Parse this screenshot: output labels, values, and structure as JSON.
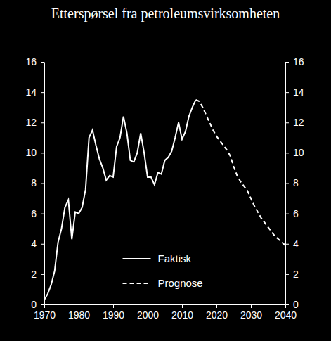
{
  "chart_data": {
    "type": "line",
    "title": "Etterspørsel fra petroleumsvirksomheten",
    "x": [
      1970,
      1971,
      1972,
      1973,
      1974,
      1975,
      1976,
      1977,
      1978,
      1979,
      1980,
      1981,
      1982,
      1983,
      1984,
      1985,
      1986,
      1987,
      1988,
      1989,
      1990,
      1991,
      1992,
      1993,
      1994,
      1995,
      1996,
      1997,
      1998,
      1999,
      2000,
      2001,
      2002,
      2003,
      2004,
      2005,
      2006,
      2007,
      2008,
      2009,
      2010,
      2011,
      2012,
      2013,
      2014,
      2015,
      2016,
      2017,
      2018,
      2019,
      2020,
      2021,
      2022,
      2023,
      2024,
      2025,
      2026,
      2027,
      2028,
      2029,
      2030,
      2031,
      2032,
      2033,
      2034,
      2035,
      2036,
      2037,
      2038,
      2039,
      2040
    ],
    "series": [
      {
        "name": "Faktisk",
        "color": "#ffffff",
        "line_style": "solid",
        "values": [
          0.3,
          0.7,
          1.3,
          2.2,
          4.1,
          5.0,
          6.4,
          6.9,
          4.3,
          6.1,
          6.0,
          6.4,
          7.6,
          11.0,
          11.5,
          10.5,
          9.6,
          9.0,
          8.2,
          8.5,
          8.4,
          10.4,
          11.0,
          12.4,
          11.3,
          9.5,
          9.4,
          10.0,
          11.3,
          10.0,
          8.4,
          8.4,
          7.9,
          8.7,
          8.6,
          9.5,
          9.7,
          10.1,
          11.0,
          12.0,
          10.9,
          11.4,
          12.4,
          13.0,
          13.5,
          null,
          null,
          null,
          null,
          null,
          null,
          null,
          null,
          null,
          null,
          null,
          null,
          null,
          null,
          null,
          null,
          null,
          null,
          null,
          null,
          null,
          null,
          null,
          null,
          null,
          null
        ]
      },
      {
        "name": "Prognose",
        "color": "#ffffff",
        "line_style": "dashed",
        "values": [
          null,
          null,
          null,
          null,
          null,
          null,
          null,
          null,
          null,
          null,
          null,
          null,
          null,
          null,
          null,
          null,
          null,
          null,
          null,
          null,
          null,
          null,
          null,
          null,
          null,
          null,
          null,
          null,
          null,
          null,
          null,
          null,
          null,
          null,
          null,
          null,
          null,
          null,
          null,
          null,
          null,
          null,
          null,
          null,
          13.5,
          13.4,
          13.0,
          12.5,
          12.0,
          11.5,
          11.1,
          10.8,
          10.5,
          10.2,
          9.8,
          9.1,
          8.5,
          8.1,
          7.8,
          7.5,
          7.0,
          6.5,
          6.1,
          5.7,
          5.4,
          5.1,
          4.8,
          4.5,
          4.3,
          4.1,
          3.9
        ]
      }
    ],
    "xlim": [
      1970,
      2040
    ],
    "xticks": [
      1970,
      1980,
      1990,
      2000,
      2010,
      2020,
      2030,
      2040
    ],
    "ylim": [
      0,
      16
    ],
    "yticks": [
      0,
      2,
      4,
      6,
      8,
      10,
      12,
      14,
      16
    ],
    "y2lim": [
      0,
      16
    ],
    "y2ticks": [
      0,
      2,
      4,
      6,
      8,
      10,
      12,
      14,
      16
    ],
    "legend": "lower center",
    "grid": false
  }
}
